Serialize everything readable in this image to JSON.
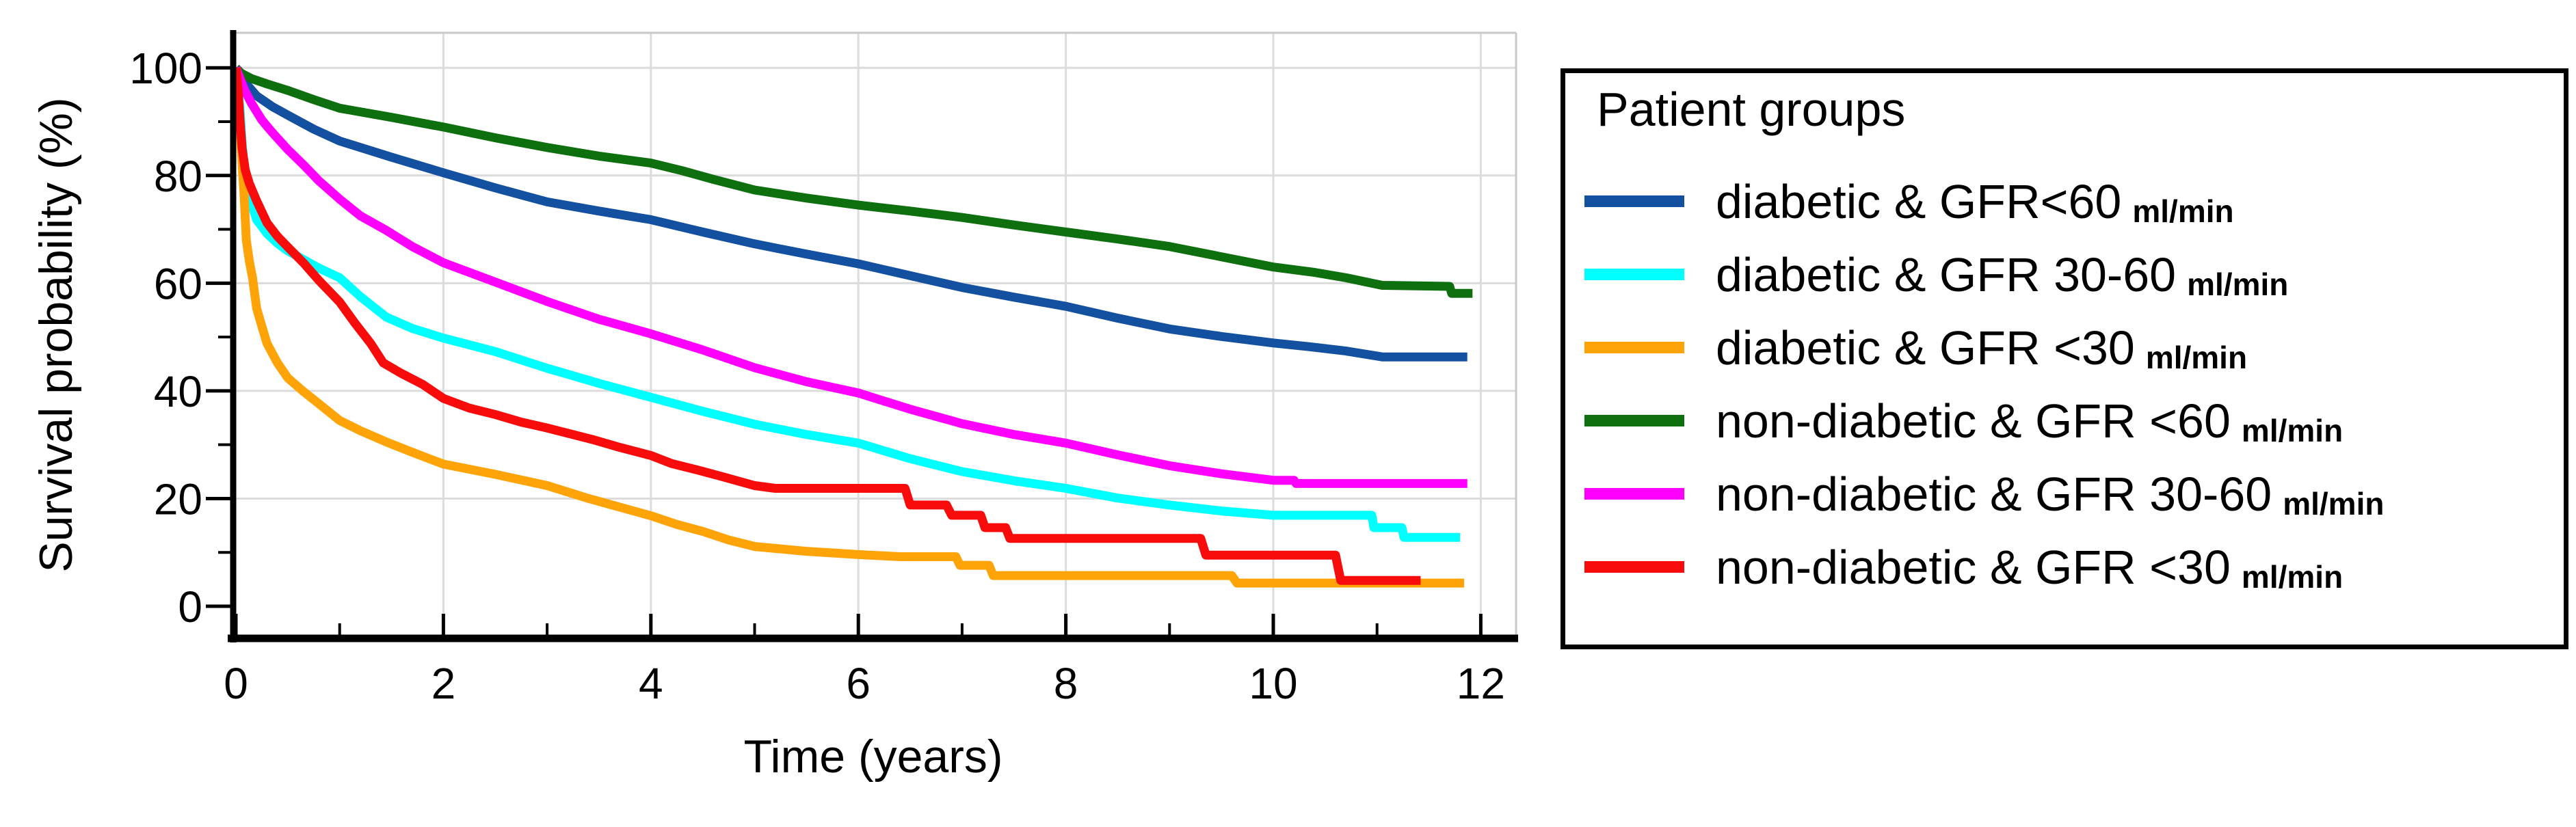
{
  "figure": {
    "x_axis_label": "Time (years)",
    "y_axis_label": "Survival probability (%)"
  },
  "legend": {
    "title": "Patient groups",
    "unit_suffix": "ml/min",
    "entries": [
      {
        "label": "diabetic & GFR<60",
        "color": "#1450A0"
      },
      {
        "label": "diabetic & GFR 30-60",
        "color": "#00FFFF"
      },
      {
        "label": "diabetic & GFR <30",
        "color": "#FFA408"
      },
      {
        "label": "non-diabetic & GFR <60",
        "color": "#0E6F0E"
      },
      {
        "label": "non-diabetic & GFR 30-60",
        "color": "#FF00FF"
      },
      {
        "label": "non-diabetic & GFR <30",
        "color": "#F80B0B"
      }
    ]
  },
  "chart_data": {
    "type": "line",
    "subtype": "kaplan-meier-survival-curves",
    "title": "",
    "xlabel": "Time (years)",
    "ylabel": "Survival probability (%)",
    "xlim": [
      0,
      12.3
    ],
    "ylim": [
      0,
      100
    ],
    "x_ticks": [
      0,
      2,
      4,
      6,
      8,
      10,
      12
    ],
    "x_minor_ticks": [
      1,
      3,
      5,
      7,
      9,
      11
    ],
    "y_ticks": [
      0,
      20,
      40,
      60,
      80,
      100
    ],
    "y_minor_ticks": [
      10,
      30,
      50,
      70,
      90
    ],
    "grid": true,
    "legend_position": "outside-right",
    "series": [
      {
        "name": "diabetic & GFR<60 ml/min",
        "color": "#1450A0",
        "points": [
          [
            0,
            100
          ],
          [
            0.05,
            98.5
          ],
          [
            0.1,
            97
          ],
          [
            0.2,
            94.8
          ],
          [
            0.35,
            92.8
          ],
          [
            0.5,
            91.2
          ],
          [
            0.75,
            88.6
          ],
          [
            1,
            86.4
          ],
          [
            1.5,
            83.4
          ],
          [
            2,
            80.5
          ],
          [
            2.5,
            77.7
          ],
          [
            3,
            75.1
          ],
          [
            3.5,
            73.4
          ],
          [
            4,
            71.8
          ],
          [
            4.5,
            69.5
          ],
          [
            5,
            67.3
          ],
          [
            5.5,
            65.4
          ],
          [
            6,
            63.6
          ],
          [
            6.5,
            61.4
          ],
          [
            7,
            59.2
          ],
          [
            7.5,
            57.4
          ],
          [
            8,
            55.7
          ],
          [
            8.5,
            53.5
          ],
          [
            9,
            51.5
          ],
          [
            9.5,
            50.1
          ],
          [
            10,
            48.9
          ],
          [
            10.35,
            48.2
          ],
          [
            10.7,
            47.4
          ],
          [
            11.05,
            46.3
          ],
          [
            11.87,
            46.3
          ]
        ]
      },
      {
        "name": "diabetic & GFR 30-60 ml/min",
        "color": "#00FFFF",
        "points": [
          [
            0,
            100
          ],
          [
            0.02,
            97
          ],
          [
            0.04,
            92
          ],
          [
            0.06,
            86
          ],
          [
            0.09,
            79.5
          ],
          [
            0.13,
            76
          ],
          [
            0.2,
            71.8
          ],
          [
            0.3,
            69.2
          ],
          [
            0.4,
            67.4
          ],
          [
            0.5,
            66
          ],
          [
            0.65,
            64.4
          ],
          [
            0.8,
            62.8
          ],
          [
            1,
            61
          ],
          [
            1.2,
            57.5
          ],
          [
            1.45,
            53.7
          ],
          [
            1.7,
            51.6
          ],
          [
            2,
            49.8
          ],
          [
            2.5,
            47.3
          ],
          [
            3,
            44.2
          ],
          [
            3.5,
            41.4
          ],
          [
            4,
            38.8
          ],
          [
            4.5,
            36.2
          ],
          [
            5,
            33.8
          ],
          [
            5.5,
            31.9
          ],
          [
            6,
            30.3
          ],
          [
            6.5,
            27.4
          ],
          [
            7,
            25
          ],
          [
            7.5,
            23.3
          ],
          [
            8,
            21.9
          ],
          [
            8.5,
            20.1
          ],
          [
            9,
            18.8
          ],
          [
            9.5,
            17.7
          ],
          [
            10,
            16.9
          ],
          [
            10.95,
            16.9
          ],
          [
            10.97,
            14.6
          ],
          [
            11.24,
            14.6
          ],
          [
            11.26,
            12.8
          ],
          [
            11.8,
            12.8
          ]
        ]
      },
      {
        "name": "diabetic & GFR <30 ml/min",
        "color": "#FFA408",
        "points": [
          [
            0,
            100
          ],
          [
            0.02,
            96
          ],
          [
            0.04,
            89
          ],
          [
            0.06,
            82
          ],
          [
            0.08,
            76
          ],
          [
            0.1,
            68
          ],
          [
            0.13,
            64
          ],
          [
            0.16,
            61
          ],
          [
            0.2,
            55.3
          ],
          [
            0.25,
            52
          ],
          [
            0.3,
            48.8
          ],
          [
            0.4,
            45.2
          ],
          [
            0.5,
            42.4
          ],
          [
            0.65,
            39.9
          ],
          [
            0.8,
            37.6
          ],
          [
            1,
            34.5
          ],
          [
            1.2,
            32.6
          ],
          [
            1.45,
            30.5
          ],
          [
            1.7,
            28.6
          ],
          [
            2,
            26.4
          ],
          [
            2.5,
            24.5
          ],
          [
            3,
            22.4
          ],
          [
            3.4,
            20
          ],
          [
            3.7,
            18.4
          ],
          [
            4,
            16.8
          ],
          [
            4.25,
            15.2
          ],
          [
            4.5,
            13.9
          ],
          [
            4.75,
            12.3
          ],
          [
            5,
            11.1
          ],
          [
            5.5,
            10.2
          ],
          [
            6,
            9.6
          ],
          [
            6.4,
            9.2
          ],
          [
            6.94,
            9.2
          ],
          [
            6.98,
            7.6
          ],
          [
            7.26,
            7.6
          ],
          [
            7.3,
            5.7
          ],
          [
            9.6,
            5.7
          ],
          [
            9.65,
            4.3
          ],
          [
            11.84,
            4.3
          ]
        ]
      },
      {
        "name": "non-diabetic & GFR <60 ml/min",
        "color": "#0E6F0E",
        "points": [
          [
            0,
            100
          ],
          [
            0.05,
            99
          ],
          [
            0.15,
            98
          ],
          [
            0.3,
            97
          ],
          [
            0.5,
            95.8
          ],
          [
            0.75,
            94.1
          ],
          [
            1,
            92.5
          ],
          [
            1.5,
            90.8
          ],
          [
            2,
            89
          ],
          [
            2.5,
            87
          ],
          [
            3,
            85.2
          ],
          [
            3.5,
            83.6
          ],
          [
            4,
            82.3
          ],
          [
            4.3,
            80.9
          ],
          [
            4.6,
            79.3
          ],
          [
            5,
            77.3
          ],
          [
            5.5,
            75.8
          ],
          [
            6,
            74.5
          ],
          [
            6.5,
            73.4
          ],
          [
            7,
            72.2
          ],
          [
            7.5,
            70.8
          ],
          [
            8,
            69.5
          ],
          [
            8.5,
            68.2
          ],
          [
            9,
            66.8
          ],
          [
            9.5,
            64.9
          ],
          [
            10,
            63
          ],
          [
            10.4,
            62
          ],
          [
            10.7,
            61
          ],
          [
            11.05,
            59.6
          ],
          [
            11.7,
            59.4
          ],
          [
            11.72,
            58.1
          ],
          [
            11.92,
            58.1
          ]
        ]
      },
      {
        "name": "non-diabetic & GFR 30-60 ml/min",
        "color": "#FF00FF",
        "points": [
          [
            0,
            100
          ],
          [
            0.04,
            98
          ],
          [
            0.08,
            96
          ],
          [
            0.15,
            93.4
          ],
          [
            0.25,
            90.3
          ],
          [
            0.35,
            88
          ],
          [
            0.5,
            84.8
          ],
          [
            0.65,
            82
          ],
          [
            0.8,
            79
          ],
          [
            1,
            75.6
          ],
          [
            1.2,
            72.5
          ],
          [
            1.45,
            69.8
          ],
          [
            1.7,
            66.8
          ],
          [
            2,
            63.8
          ],
          [
            2.5,
            60.2
          ],
          [
            3,
            56.6
          ],
          [
            3.5,
            53.3
          ],
          [
            4,
            50.6
          ],
          [
            4.5,
            47.6
          ],
          [
            5,
            44.3
          ],
          [
            5.5,
            41.7
          ],
          [
            6,
            39.6
          ],
          [
            6.5,
            36.6
          ],
          [
            7,
            33.9
          ],
          [
            7.5,
            31.9
          ],
          [
            8,
            30.3
          ],
          [
            8.5,
            28.1
          ],
          [
            9,
            26.1
          ],
          [
            9.5,
            24.6
          ],
          [
            10,
            23.4
          ],
          [
            10.2,
            23.4
          ],
          [
            10.22,
            22.8
          ],
          [
            11.87,
            22.8
          ]
        ]
      },
      {
        "name": "non-diabetic & GFR <30 ml/min",
        "color": "#F80B0B",
        "points": [
          [
            0,
            100
          ],
          [
            0.02,
            96
          ],
          [
            0.04,
            90
          ],
          [
            0.06,
            85
          ],
          [
            0.09,
            81
          ],
          [
            0.13,
            78.5
          ],
          [
            0.2,
            75.3
          ],
          [
            0.3,
            71.2
          ],
          [
            0.4,
            68.7
          ],
          [
            0.5,
            66.7
          ],
          [
            0.65,
            63.8
          ],
          [
            0.8,
            60.5
          ],
          [
            1,
            56.5
          ],
          [
            1.15,
            52.5
          ],
          [
            1.3,
            48.8
          ],
          [
            1.42,
            45.2
          ],
          [
            1.6,
            43.2
          ],
          [
            1.8,
            41.2
          ],
          [
            2,
            38.6
          ],
          [
            2.25,
            36.8
          ],
          [
            2.5,
            35.6
          ],
          [
            2.75,
            34.2
          ],
          [
            3,
            33.1
          ],
          [
            3.45,
            30.9
          ],
          [
            3.7,
            29.5
          ],
          [
            4,
            28
          ],
          [
            4.2,
            26.5
          ],
          [
            4.45,
            25.3
          ],
          [
            4.7,
            24
          ],
          [
            5,
            22.4
          ],
          [
            5.2,
            21.9
          ],
          [
            6.45,
            21.9
          ],
          [
            6.5,
            18.8
          ],
          [
            6.85,
            18.8
          ],
          [
            6.9,
            16.9
          ],
          [
            7.18,
            16.9
          ],
          [
            7.22,
            14.6
          ],
          [
            7.42,
            14.6
          ],
          [
            7.46,
            12.6
          ],
          [
            9.3,
            12.6
          ],
          [
            9.35,
            9.5
          ],
          [
            10.6,
            9.5
          ],
          [
            10.65,
            4.8
          ],
          [
            11.42,
            4.8
          ]
        ]
      }
    ]
  }
}
